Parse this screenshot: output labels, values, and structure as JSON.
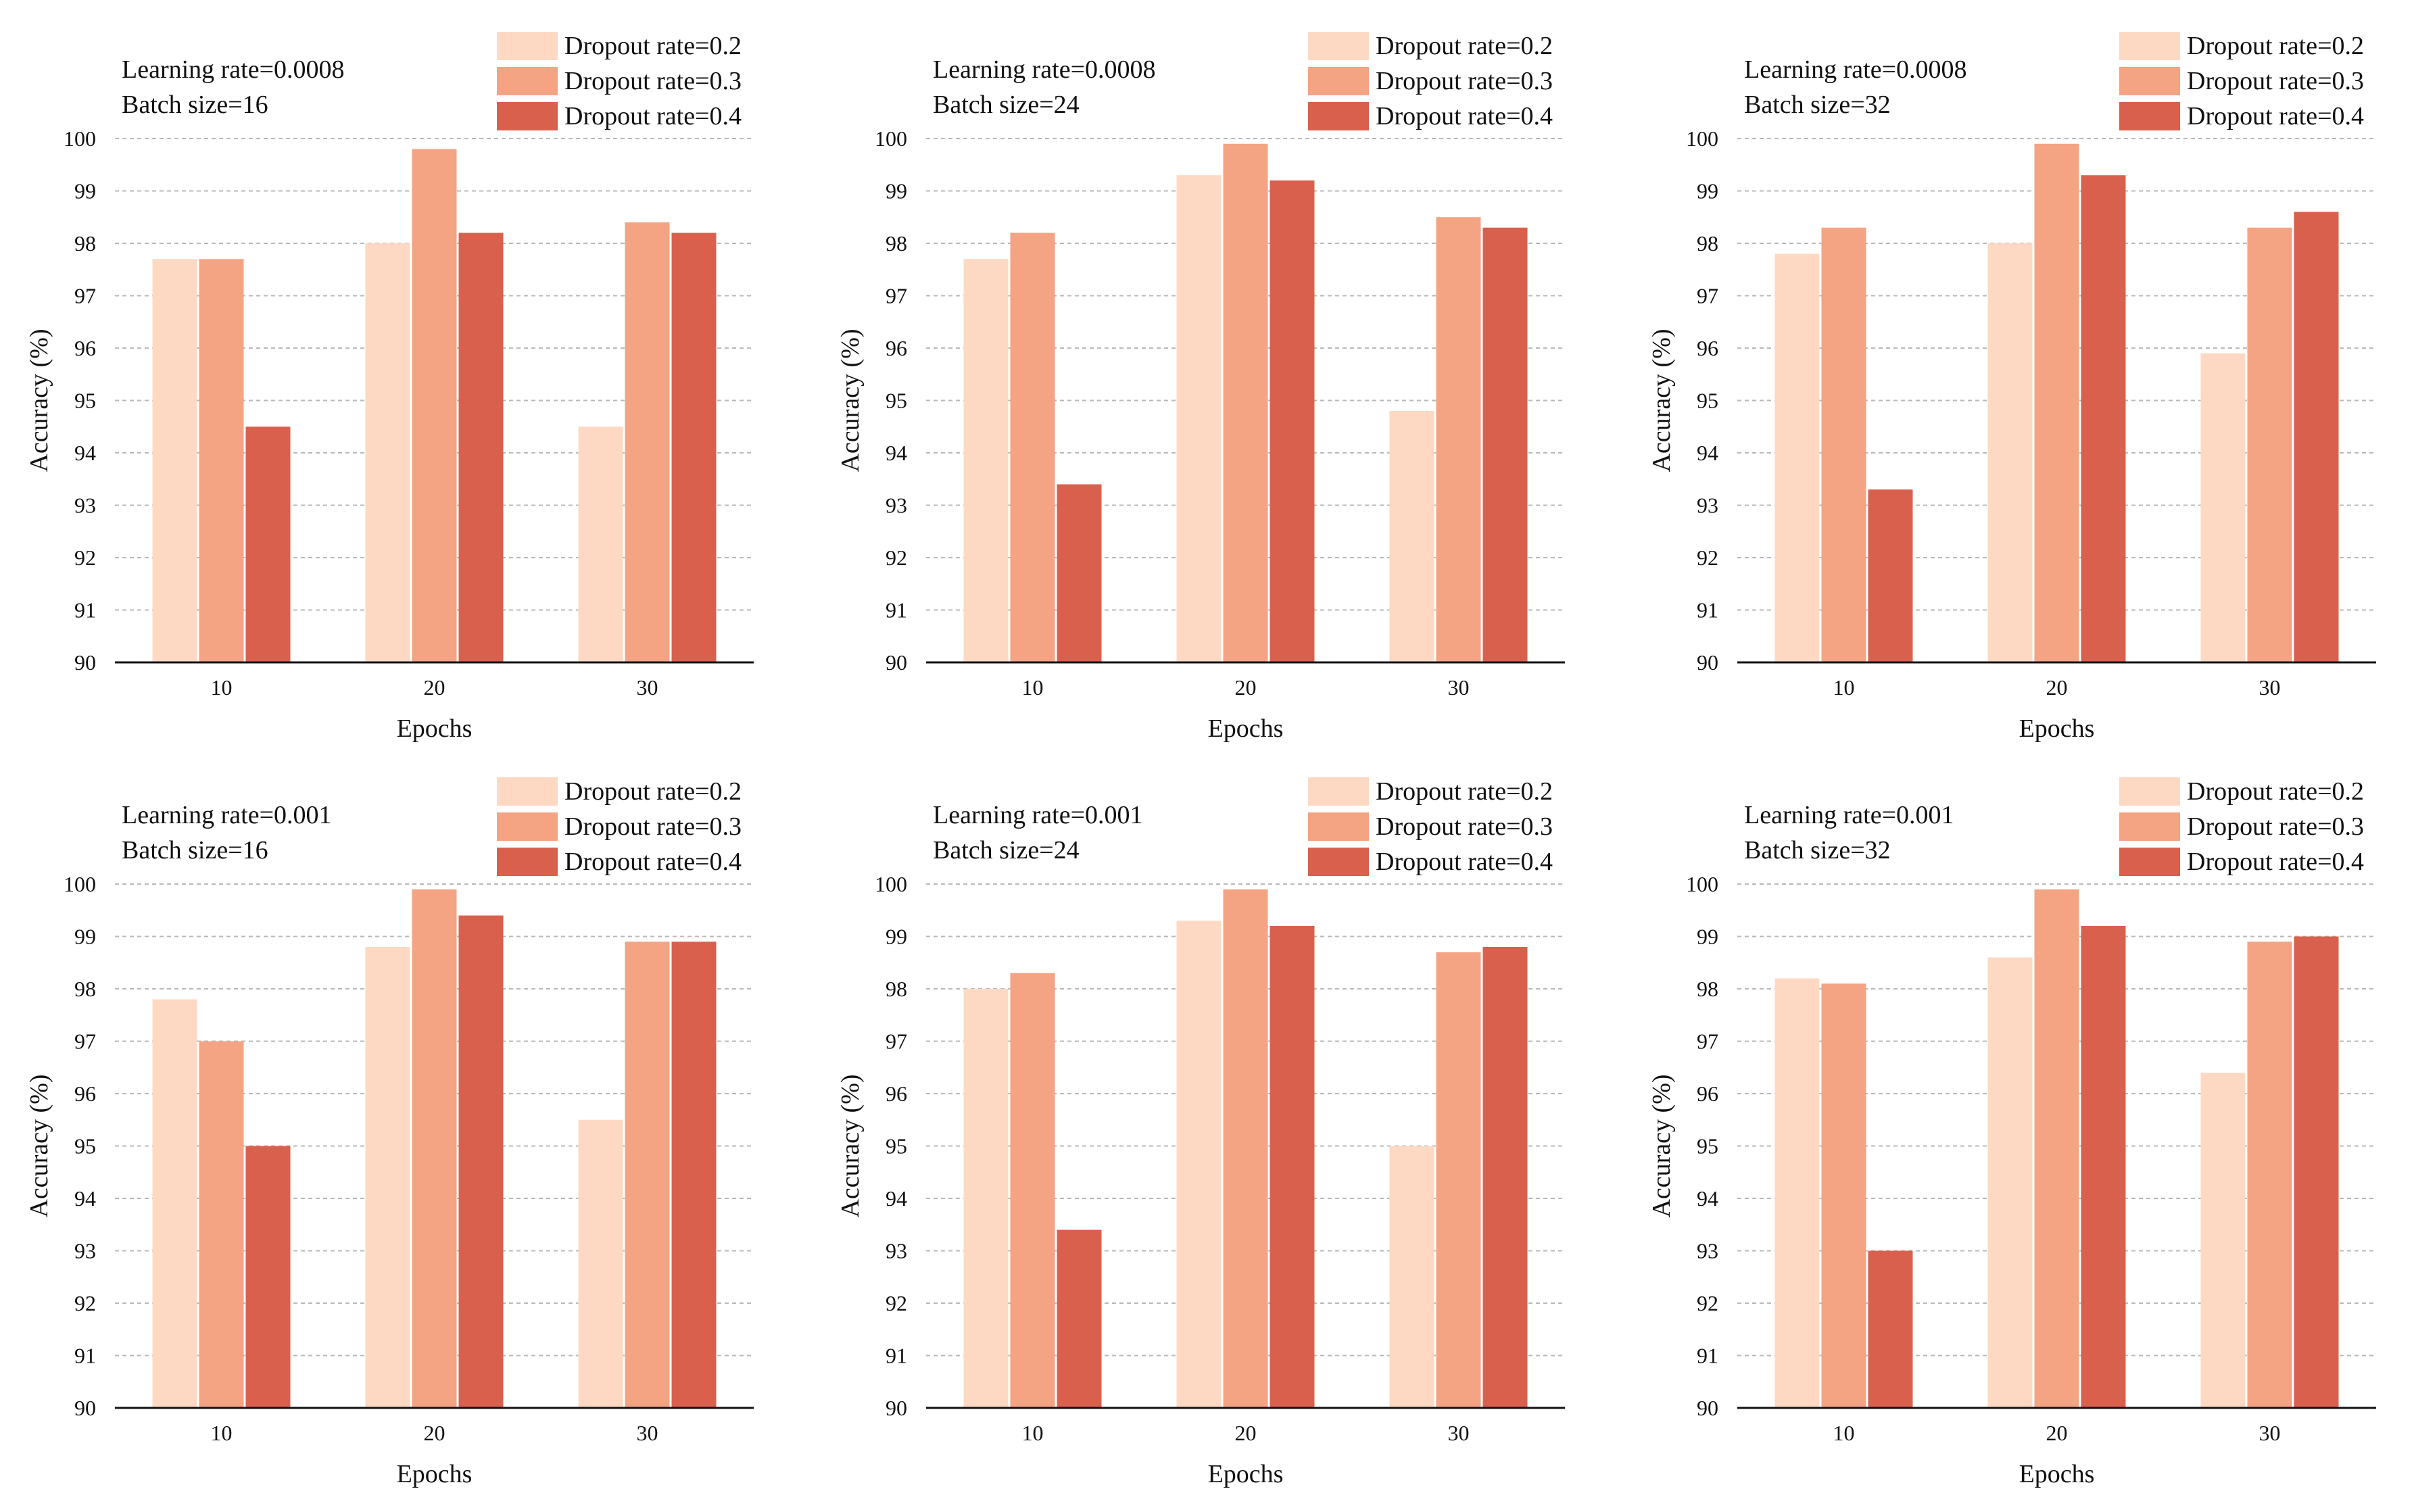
{
  "colors": {
    "dropout_0_2": "#fdd9c4",
    "dropout_0_3": "#f4a383",
    "dropout_0_4": "#d9604d"
  },
  "chart_data": [
    {
      "type": "bar",
      "annotation": [
        "Learning rate=0.0008",
        "Batch size=16"
      ],
      "categories": [
        "10",
        "20",
        "30"
      ],
      "series": [
        {
          "name": "Dropout rate=0.2",
          "values": [
            97.7,
            98.0,
            94.5
          ]
        },
        {
          "name": "Dropout rate=0.3",
          "values": [
            97.7,
            99.8,
            98.4
          ]
        },
        {
          "name": "Dropout rate=0.4",
          "values": [
            94.5,
            98.2,
            98.2
          ]
        }
      ],
      "xlabel": "Epochs",
      "ylabel": "Accuracy (%)",
      "ylim": [
        90,
        100
      ],
      "yticks": [
        "90",
        "91",
        "92",
        "93",
        "94",
        "95",
        "96",
        "97",
        "98",
        "99",
        "100"
      ],
      "grid": true,
      "legend": "top-right"
    },
    {
      "type": "bar",
      "annotation": [
        "Learning rate=0.0008",
        "Batch size=24"
      ],
      "categories": [
        "10",
        "20",
        "30"
      ],
      "series": [
        {
          "name": "Dropout rate=0.2",
          "values": [
            97.7,
            99.3,
            94.8
          ]
        },
        {
          "name": "Dropout rate=0.3",
          "values": [
            98.2,
            99.9,
            98.5
          ]
        },
        {
          "name": "Dropout rate=0.4",
          "values": [
            93.4,
            99.2,
            98.3
          ]
        }
      ],
      "xlabel": "Epochs",
      "ylabel": "Accuracy (%)",
      "ylim": [
        90,
        100
      ],
      "yticks": [
        "90",
        "91",
        "92",
        "93",
        "94",
        "95",
        "96",
        "97",
        "98",
        "99",
        "100"
      ],
      "grid": true,
      "legend": "top-right"
    },
    {
      "type": "bar",
      "annotation": [
        "Learning rate=0.0008",
        "Batch size=32"
      ],
      "categories": [
        "10",
        "20",
        "30"
      ],
      "series": [
        {
          "name": "Dropout rate=0.2",
          "values": [
            97.8,
            98.0,
            95.9
          ]
        },
        {
          "name": "Dropout rate=0.3",
          "values": [
            98.3,
            99.9,
            98.3
          ]
        },
        {
          "name": "Dropout rate=0.4",
          "values": [
            93.3,
            99.3,
            98.6
          ]
        }
      ],
      "xlabel": "Epochs",
      "ylabel": "Accuracy (%)",
      "ylim": [
        90,
        100
      ],
      "yticks": [
        "90",
        "91",
        "92",
        "93",
        "94",
        "95",
        "96",
        "97",
        "98",
        "99",
        "100"
      ],
      "grid": true,
      "legend": "top-right"
    },
    {
      "type": "bar",
      "annotation": [
        "Learning rate=0.001",
        "Batch size=16"
      ],
      "categories": [
        "10",
        "20",
        "30"
      ],
      "series": [
        {
          "name": "Dropout rate=0.2",
          "values": [
            97.8,
            98.8,
            95.5
          ]
        },
        {
          "name": "Dropout rate=0.3",
          "values": [
            97.0,
            99.9,
            98.9
          ]
        },
        {
          "name": "Dropout rate=0.4",
          "values": [
            95.0,
            99.4,
            98.9
          ]
        }
      ],
      "xlabel": "Epochs",
      "ylabel": "Accuracy (%)",
      "ylim": [
        90,
        100
      ],
      "yticks": [
        "90",
        "91",
        "92",
        "93",
        "94",
        "95",
        "96",
        "97",
        "98",
        "99",
        "100"
      ],
      "grid": true,
      "legend": "top-right"
    },
    {
      "type": "bar",
      "annotation": [
        "Learning rate=0.001",
        "Batch size=24"
      ],
      "categories": [
        "10",
        "20",
        "30"
      ],
      "series": [
        {
          "name": "Dropout rate=0.2",
          "values": [
            98.0,
            99.3,
            95.0
          ]
        },
        {
          "name": "Dropout rate=0.3",
          "values": [
            98.3,
            99.9,
            98.7
          ]
        },
        {
          "name": "Dropout rate=0.4",
          "values": [
            93.4,
            99.2,
            98.8
          ]
        }
      ],
      "xlabel": "Epochs",
      "ylabel": "Accuracy (%)",
      "ylim": [
        90,
        100
      ],
      "yticks": [
        "90",
        "91",
        "92",
        "93",
        "94",
        "95",
        "96",
        "97",
        "98",
        "99",
        "100"
      ],
      "grid": true,
      "legend": "top-right"
    },
    {
      "type": "bar",
      "annotation": [
        "Learning rate=0.001",
        "Batch size=32"
      ],
      "categories": [
        "10",
        "20",
        "30"
      ],
      "series": [
        {
          "name": "Dropout rate=0.2",
          "values": [
            98.2,
            98.6,
            96.4
          ]
        },
        {
          "name": "Dropout rate=0.3",
          "values": [
            98.1,
            99.9,
            98.9
          ]
        },
        {
          "name": "Dropout rate=0.4",
          "values": [
            93.0,
            99.2,
            99.0
          ]
        }
      ],
      "xlabel": "Epochs",
      "ylabel": "Accuracy (%)",
      "ylim": [
        90,
        100
      ],
      "yticks": [
        "90",
        "91",
        "92",
        "93",
        "94",
        "95",
        "96",
        "97",
        "98",
        "99",
        "100"
      ],
      "grid": true,
      "legend": "top-right"
    }
  ]
}
